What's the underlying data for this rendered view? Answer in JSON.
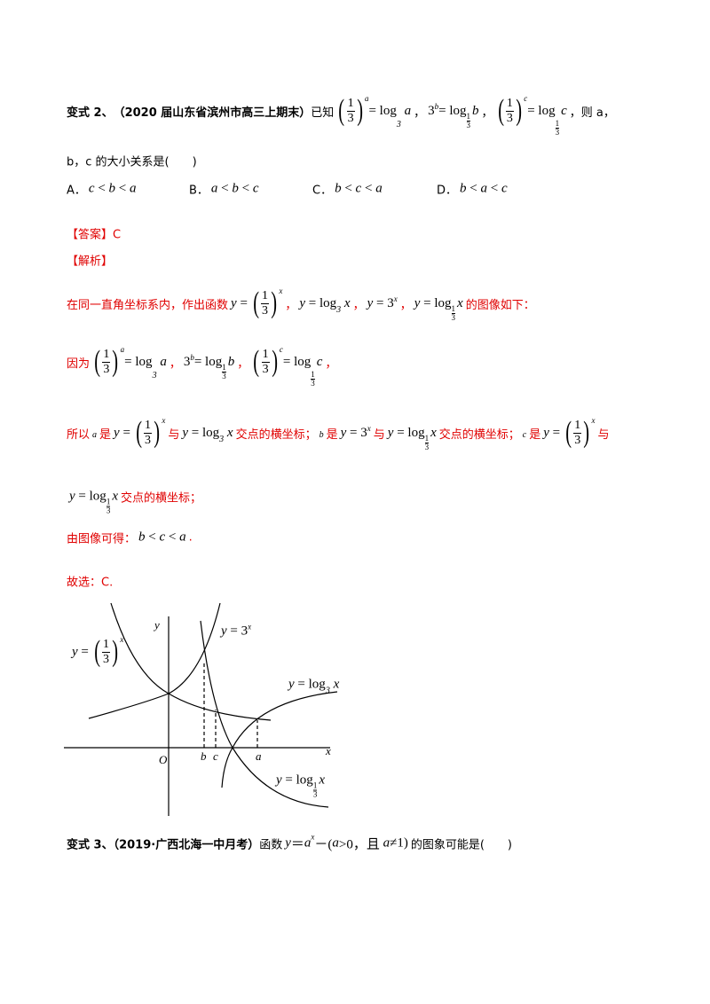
{
  "lines": [
    {
      "color": "#000",
      "segments": [
        {
          "text": "变式 2、",
          "bold": true
        },
        {
          "text": "（2020 届山东省滨州市高三上期末）",
          "bold": true
        },
        {
          "text": "已知"
        },
        {
          "math": [
            {
              "pfrac": [
                "1",
                "3"
              ]
            },
            {
              "sup": "a"
            },
            {
              "r": "= log"
            },
            {
              "sub": "3"
            },
            {
              "i": " a"
            }
          ]
        },
        {
          "text": "，"
        },
        {
          "math": [
            {
              "r": "3"
            },
            {
              "sup": "b"
            },
            {
              "r": "= log"
            },
            {
              "subfrac": [
                "1",
                "3"
              ]
            },
            {
              "i": "b"
            }
          ]
        },
        {
          "text": "，"
        },
        {
          "math": [
            {
              "pfrac": [
                "1",
                "3"
              ]
            },
            {
              "sup": "c"
            },
            {
              "r": "= log"
            },
            {
              "subfrac": [
                "1",
                "3"
              ]
            },
            {
              "i": "c"
            }
          ]
        },
        {
          "text": "，则 a，"
        }
      ]
    },
    {
      "color": "#000",
      "segments": [
        {
          "text": "b，c 的大小关系是(　　)"
        }
      ]
    },
    {
      "color": "#e00000",
      "segments": [
        {
          "text": "【答案】C"
        }
      ]
    },
    {
      "color": "#e00000",
      "segments": [
        {
          "text": "【解析】"
        }
      ]
    },
    {
      "color": "#e00000",
      "segments": [
        {
          "text": "在同一直角坐标系内，作出函数"
        },
        {
          "math": [
            {
              "i": "y"
            },
            {
              "r": " = "
            },
            {
              "pfrac": [
                "1",
                "3"
              ]
            },
            {
              "sup": "x"
            }
          ]
        },
        {
          "text": "，"
        },
        {
          "math": [
            {
              "i": "y"
            },
            {
              "r": " = log"
            },
            {
              "sub": "3"
            },
            {
              "i": " x"
            }
          ]
        },
        {
          "text": "，"
        },
        {
          "math": [
            {
              "i": "y"
            },
            {
              "r": " = 3"
            },
            {
              "sup": "x"
            }
          ]
        },
        {
          "text": "，"
        },
        {
          "math": [
            {
              "i": "y"
            },
            {
              "r": " = log"
            },
            {
              "subfrac": [
                "1",
                "3"
              ]
            },
            {
              "i": "x"
            }
          ]
        },
        {
          "text": "的图像如下："
        }
      ]
    },
    {
      "color": "#e00000",
      "segments": [
        {
          "text": "因为"
        },
        {
          "math": [
            {
              "pfrac": [
                "1",
                "3"
              ]
            },
            {
              "sup": "a"
            },
            {
              "r": "= log"
            },
            {
              "sub": "3"
            },
            {
              "i": " a"
            }
          ]
        },
        {
          "text": "，"
        },
        {
          "math": [
            {
              "r": "3"
            },
            {
              "sup": "b"
            },
            {
              "r": "= log"
            },
            {
              "subfrac": [
                "1",
                "3"
              ]
            },
            {
              "i": "b"
            }
          ]
        },
        {
          "text": "，"
        },
        {
          "math": [
            {
              "pfrac": [
                "1",
                "3"
              ]
            },
            {
              "sup": "c"
            },
            {
              "r": "= log"
            },
            {
              "subfrac": [
                "1",
                "3"
              ]
            },
            {
              "i": "c"
            }
          ]
        },
        {
          "text": "，"
        }
      ]
    },
    {
      "color": "#e00000",
      "segments": [
        {
          "text": "所以"
        },
        {
          "math": [
            {
              "sub": "a"
            }
          ]
        },
        {
          "text": "是"
        },
        {
          "math": [
            {
              "i": "y"
            },
            {
              "r": " = "
            },
            {
              "pfrac": [
                "1",
                "3"
              ]
            },
            {
              "sup": "x"
            }
          ]
        },
        {
          "text": "与"
        },
        {
          "math": [
            {
              "i": "y"
            },
            {
              "r": " = log"
            },
            {
              "sub": "3"
            },
            {
              "i": " x"
            }
          ]
        },
        {
          "text": "交点的横坐标；"
        },
        {
          "math": [
            {
              "sub": "b"
            }
          ]
        },
        {
          "text": "是"
        },
        {
          "math": [
            {
              "i": "y"
            },
            {
              "r": " = 3"
            },
            {
              "sup": "x"
            }
          ]
        },
        {
          "text": "与"
        },
        {
          "math": [
            {
              "i": "y"
            },
            {
              "r": " = log"
            },
            {
              "subfrac": [
                "1",
                "3"
              ]
            },
            {
              "i": "x"
            }
          ]
        },
        {
          "text": "交点的横坐标；"
        },
        {
          "math": [
            {
              "sub": "c"
            }
          ]
        },
        {
          "text": "是"
        },
        {
          "math": [
            {
              "i": "y"
            },
            {
              "r": " = "
            },
            {
              "pfrac": [
                "1",
                "3"
              ]
            },
            {
              "sup": "x"
            }
          ]
        },
        {
          "text": "与"
        }
      ]
    },
    {
      "color": "#e00000",
      "segments": [
        {
          "math": [
            {
              "i": "y"
            },
            {
              "r": " = log"
            },
            {
              "subfrac": [
                "1",
                "3"
              ]
            },
            {
              "i": "x"
            }
          ]
        },
        {
          "text": "交点的横坐标；"
        }
      ]
    },
    {
      "color": "#e00000",
      "segments": [
        {
          "text": "由图像可得："
        },
        {
          "math": [
            {
              "i": "b"
            },
            {
              "r": " < "
            },
            {
              "i": "c"
            },
            {
              "r": " < "
            },
            {
              "i": "a"
            }
          ]
        },
        {
          "text": "."
        }
      ]
    },
    {
      "color": "#e00000",
      "segments": [
        {
          "text": "故选：C."
        }
      ]
    },
    {
      "color": "#000",
      "segments": [
        {
          "text": "变式 3、（2019·广西北海一中月考）",
          "bold": true
        },
        {
          "text": "函数 "
        },
        {
          "math": [
            {
              "i": "y"
            },
            {
              "r": "＝"
            },
            {
              "i": "a"
            },
            {
              "sup": "x"
            },
            {
              "r": "－("
            },
            {
              "i": "a"
            },
            {
              "r": ">0，且 "
            },
            {
              "i": "a"
            },
            {
              "r": "≠1)"
            }
          ]
        },
        {
          "text": "的图象可能是(　　)"
        }
      ]
    }
  ],
  "options": [
    {
      "letter": "A．",
      "math": [
        {
          "i": "c"
        },
        {
          "r": " < "
        },
        {
          "i": "b"
        },
        {
          "r": " < "
        },
        {
          "i": "a"
        }
      ]
    },
    {
      "letter": "B．",
      "math": [
        {
          "i": "a"
        },
        {
          "r": " < "
        },
        {
          "i": "b"
        },
        {
          "r": " < "
        },
        {
          "i": "c"
        }
      ]
    },
    {
      "letter": "C．",
      "math": [
        {
          "i": "b"
        },
        {
          "r": " < "
        },
        {
          "i": "c"
        },
        {
          "r": " < "
        },
        {
          "i": "a"
        }
      ]
    },
    {
      "letter": "D．",
      "math": [
        {
          "i": "b"
        },
        {
          "r": " < "
        },
        {
          "i": "a"
        },
        {
          "r": " < "
        },
        {
          "i": "c"
        }
      ]
    }
  ],
  "graph": {
    "axis_x": "x",
    "axis_y": "y",
    "origin": "O",
    "points": [
      "b",
      "c",
      "a"
    ],
    "labels": [
      [
        {
          "i": "y"
        },
        {
          "r": " = "
        },
        {
          "pfrac": [
            "1",
            "3"
          ]
        },
        {
          "sup": "x"
        }
      ],
      [
        {
          "i": "y"
        },
        {
          "r": " = 3"
        },
        {
          "sup": "x"
        }
      ],
      [
        {
          "i": "y"
        },
        {
          "r": " = log"
        },
        {
          "sub": "3"
        },
        {
          "i": " x"
        }
      ],
      [
        {
          "i": "y"
        },
        {
          "r": " = log"
        },
        {
          "subfrac": [
            "1",
            "3"
          ]
        },
        {
          "i": "x"
        }
      ]
    ]
  }
}
